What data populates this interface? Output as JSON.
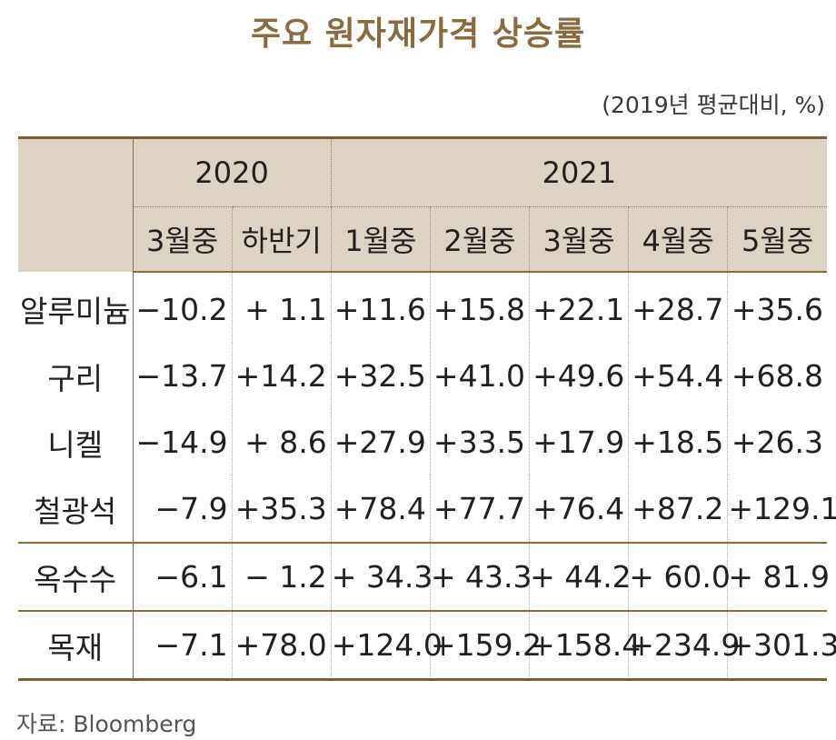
{
  "title": "주요 원자재가격 상승률",
  "unit_note": "(2019년 평균대비, %)",
  "source": "자료: Bloomberg",
  "header": {
    "year_2020": "2020",
    "year_2021": "2021",
    "columns": [
      "3월중",
      "하반기",
      "1월중",
      "2월중",
      "3월중",
      "4월중",
      "5월중"
    ]
  },
  "chart_data": {
    "type": "table",
    "title": "주요 원자재가격 상승률",
    "column_groups": [
      {
        "name": "2020",
        "columns": [
          "3월중",
          "하반기"
        ]
      },
      {
        "name": "2021",
        "columns": [
          "1월중",
          "2월중",
          "3월중",
          "4월중",
          "5월중"
        ]
      }
    ],
    "rows": [
      {
        "name": "알루미늄",
        "values": [
          "−10.2",
          "+ 1.1",
          "+11.6",
          "+15.8",
          "+22.1",
          "+28.7",
          "+35.6"
        ]
      },
      {
        "name": "구리",
        "values": [
          "−13.7",
          "+14.2",
          "+32.5",
          "+41.0",
          "+49.6",
          "+54.4",
          "+68.8"
        ]
      },
      {
        "name": "니켈",
        "values": [
          "−14.9",
          "+ 8.6",
          "+27.9",
          "+33.5",
          "+17.9",
          "+18.5",
          "+26.3"
        ]
      },
      {
        "name": "철광석",
        "values": [
          "−7.9",
          "+35.3",
          "+78.4",
          "+77.7",
          "+76.4",
          "+87.2",
          "+129.1"
        ]
      },
      {
        "name": "옥수수",
        "values": [
          "−6.1",
          "− 1.2",
          "+ 34.3",
          "+ 43.3",
          "+ 44.2",
          "+ 60.0",
          "+ 81.9"
        ]
      },
      {
        "name": "목재",
        "values": [
          "−7.1",
          "+78.0",
          "+124.0",
          "+159.2",
          "+158.4",
          "+234.9",
          "+301.3"
        ]
      }
    ],
    "colors": {
      "title": "#8a6a3e",
      "header_bg": "#dcd3c4",
      "rule": "#7a5e38"
    }
  }
}
